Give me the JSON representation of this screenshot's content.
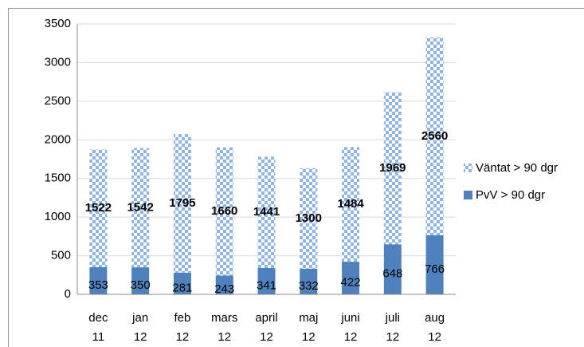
{
  "chart_data": {
    "type": "stacked-bar",
    "categories": [
      "dec 11",
      "jan 12",
      "feb 12",
      "mars 12",
      "april 12",
      "maj 12",
      "juni 12",
      "juli 12",
      "aug 12"
    ],
    "series": [
      {
        "name": "PvV > 90 dgr",
        "color": "#4f81bd",
        "values": [
          353,
          350,
          281,
          243,
          341,
          332,
          422,
          648,
          766
        ]
      },
      {
        "name": "Väntat > 90 dgr",
        "color": "#8db4e2",
        "pattern": "checker",
        "values": [
          1522,
          1542,
          1795,
          1660,
          1441,
          1300,
          1484,
          1969,
          2560
        ]
      }
    ],
    "ylim": [
      0,
      3500
    ],
    "yticks": [
      0,
      500,
      1000,
      1500,
      2000,
      2500,
      3000,
      3500
    ],
    "grid": true,
    "legend": "right"
  }
}
